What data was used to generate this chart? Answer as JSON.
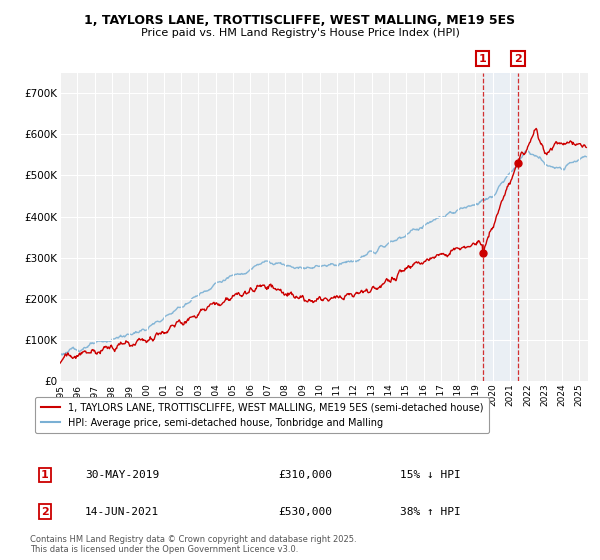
{
  "title_line1": "1, TAYLORS LANE, TROTTISCLIFFE, WEST MALLING, ME19 5ES",
  "title_line2": "Price paid vs. HM Land Registry's House Price Index (HPI)",
  "ylim": [
    0,
    750000
  ],
  "yticks": [
    0,
    100000,
    200000,
    300000,
    400000,
    500000,
    600000,
    700000
  ],
  "ytick_labels": [
    "£0",
    "£100K",
    "£200K",
    "£300K",
    "£400K",
    "£500K",
    "£600K",
    "£700K"
  ],
  "price_paid_color": "#cc0000",
  "hpi_color": "#7ab0d4",
  "vline_color": "#cc0000",
  "shade_color": "#ddeeff",
  "background_color": "#f0f0f0",
  "legend_label_price": "1, TAYLORS LANE, TROTTISCLIFFE, WEST MALLING, ME19 5ES (semi-detached house)",
  "legend_label_hpi": "HPI: Average price, semi-detached house, Tonbridge and Malling",
  "sale1_date": "30-MAY-2019",
  "sale1_price": "£310,000",
  "sale1_hpi": "15% ↓ HPI",
  "sale1_x": 2019.41,
  "sale1_y": 310000,
  "sale2_date": "14-JUN-2021",
  "sale2_price": "£530,000",
  "sale2_hpi": "38% ↑ HPI",
  "sale2_x": 2021.45,
  "sale2_y": 530000,
  "footnote": "Contains HM Land Registry data © Crown copyright and database right 2025.\nThis data is licensed under the Open Government Licence v3.0.",
  "xlim_start": 1995,
  "xlim_end": 2025.5,
  "num_box_1": "1",
  "num_box_2": "2"
}
